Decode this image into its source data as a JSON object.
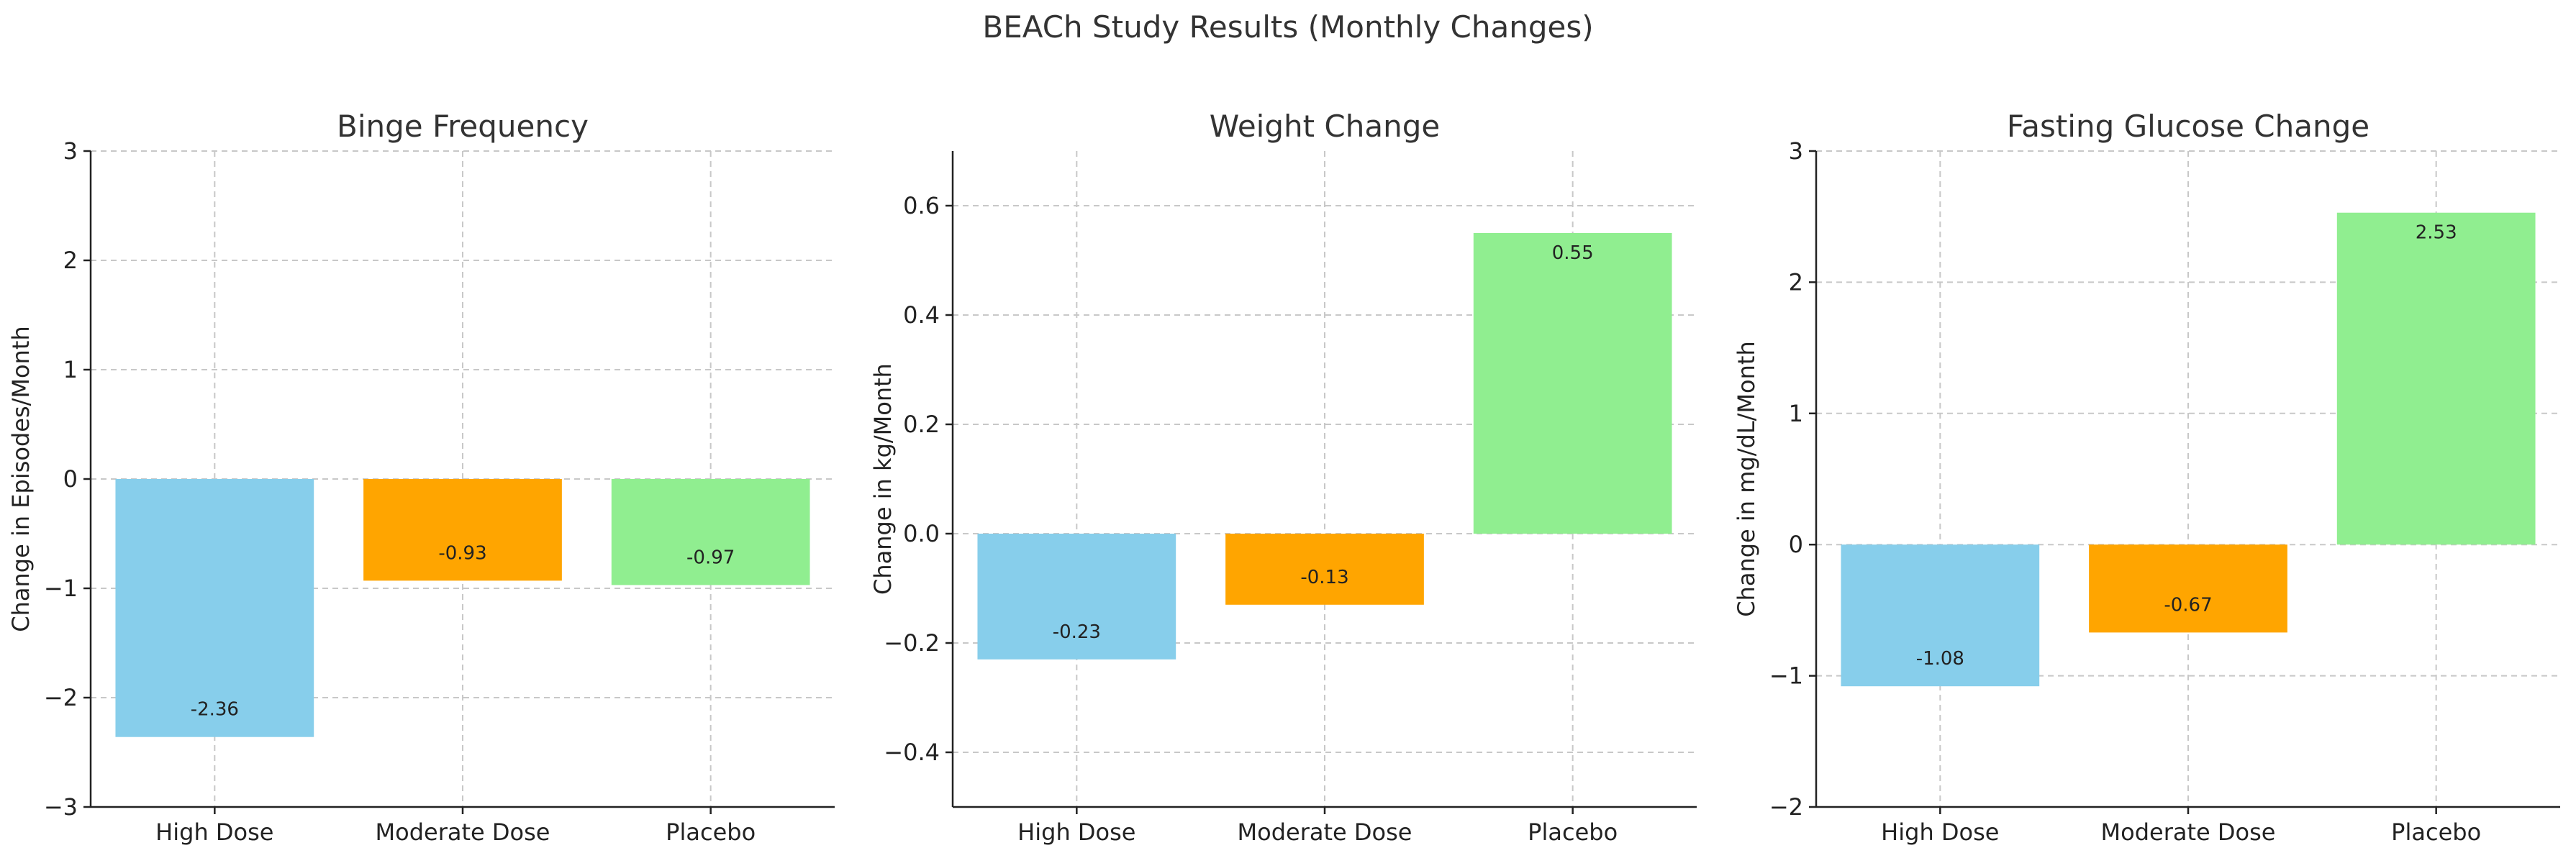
{
  "figure": {
    "title": "BEACh Study Results (Monthly Changes)"
  },
  "chart_data": [
    {
      "type": "bar",
      "title": "Binge Frequency",
      "xlabel": "",
      "ylabel": "Change in Episodes/Month",
      "categories": [
        "High Dose",
        "Moderate Dose",
        "Placebo"
      ],
      "values": [
        -2.36,
        -0.93,
        -0.97
      ],
      "value_labels": [
        "-2.36",
        "-0.93",
        "-0.97"
      ],
      "colors": [
        "#87ceeb",
        "#ffa500",
        "#90ee90"
      ],
      "ylim": [
        -3,
        3
      ],
      "yticks": [
        -3,
        -2,
        -1,
        0,
        1,
        2,
        3
      ],
      "ytick_labels": [
        "−3",
        "−2",
        "−1",
        "0",
        "1",
        "2",
        "3"
      ],
      "grid": true
    },
    {
      "type": "bar",
      "title": "Weight Change",
      "xlabel": "",
      "ylabel": "Change in kg/Month",
      "categories": [
        "High Dose",
        "Moderate Dose",
        "Placebo"
      ],
      "values": [
        -0.23,
        -0.13,
        0.55
      ],
      "value_labels": [
        "-0.23",
        "-0.13",
        "0.55"
      ],
      "colors": [
        "#87ceeb",
        "#ffa500",
        "#90ee90"
      ],
      "ylim": [
        -0.5,
        0.7
      ],
      "yticks": [
        -0.4,
        -0.2,
        0.0,
        0.2,
        0.4,
        0.6
      ],
      "ytick_labels": [
        "−0.4",
        "−0.2",
        "0.0",
        "0.2",
        "0.4",
        "0.6"
      ],
      "grid": true
    },
    {
      "type": "bar",
      "title": "Fasting Glucose Change",
      "xlabel": "",
      "ylabel": "Change in mg/dL/Month",
      "categories": [
        "High Dose",
        "Moderate Dose",
        "Placebo"
      ],
      "values": [
        -1.08,
        -0.67,
        2.53
      ],
      "value_labels": [
        "-1.08",
        "-0.67",
        "2.53"
      ],
      "colors": [
        "#87ceeb",
        "#ffa500",
        "#90ee90"
      ],
      "ylim": [
        -2,
        3
      ],
      "yticks": [
        -2,
        -1,
        0,
        1,
        2,
        3
      ],
      "ytick_labels": [
        "−2",
        "−1",
        "0",
        "1",
        "2",
        "3"
      ],
      "grid": true
    }
  ]
}
